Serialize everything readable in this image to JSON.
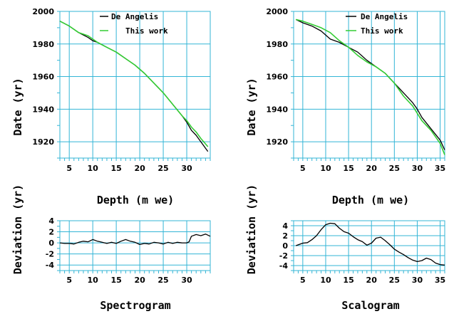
{
  "chart_data": [
    {
      "id": "top-left",
      "type": "line",
      "xlabel": "Depth (m we)",
      "ylabel": "Date (yr)",
      "xlim": [
        3,
        35
      ],
      "ylim": [
        1910,
        2000
      ],
      "xticks": [
        5,
        10,
        15,
        20,
        25,
        30
      ],
      "yticks": [
        1920,
        1940,
        1960,
        1980,
        2000
      ],
      "grid": true,
      "legend_position": "top-right",
      "series": [
        {
          "name": "De Angelis",
          "color": "#000000",
          "x": [
            3,
            5,
            7,
            9,
            10,
            11,
            13,
            15,
            17,
            19,
            21,
            23,
            25,
            27,
            29,
            30,
            31,
            32,
            33,
            34.5
          ],
          "y": [
            1994,
            1991,
            1987,
            1984,
            1982,
            1981,
            1978,
            1975,
            1971,
            1967,
            1962,
            1956,
            1950,
            1943,
            1936,
            1932,
            1927,
            1924,
            1920,
            1914
          ]
        },
        {
          "name": "This work",
          "color": "#33cc33",
          "x": [
            3,
            5,
            7,
            9,
            10,
            11,
            13,
            15,
            17,
            19,
            21,
            23,
            25,
            27,
            29,
            30,
            31,
            32,
            33,
            34.5
          ],
          "y": [
            1994,
            1991,
            1987,
            1985,
            1983,
            1981,
            1978,
            1975,
            1971,
            1967,
            1962,
            1956,
            1950,
            1943,
            1936,
            1933,
            1929,
            1926,
            1922,
            1917
          ]
        }
      ]
    },
    {
      "id": "top-right",
      "type": "line",
      "xlabel": "Depth (m we)",
      "ylabel": "Date (yr)",
      "xlim": [
        3,
        36
      ],
      "ylim": [
        1910,
        2000
      ],
      "xticks": [
        5,
        10,
        15,
        20,
        25,
        30,
        35
      ],
      "yticks": [
        1920,
        1940,
        1960,
        1980,
        2000
      ],
      "grid": true,
      "legend_position": "top-right",
      "series": [
        {
          "name": "De Angelis",
          "color": "#000000",
          "x": [
            3.5,
            5,
            7,
            9,
            11,
            13,
            15,
            17,
            19,
            21,
            23,
            25,
            27,
            29,
            30,
            31,
            33,
            35,
            36
          ],
          "y": [
            1995,
            1993,
            1991,
            1988,
            1983,
            1981,
            1978,
            1975,
            1970,
            1966,
            1962,
            1956,
            1950,
            1944,
            1940,
            1935,
            1928,
            1921,
            1915
          ]
        },
        {
          "name": "This work",
          "color": "#33cc33",
          "x": [
            3.5,
            5,
            7,
            9,
            11,
            13,
            15,
            17,
            19,
            21,
            23,
            25,
            27,
            29,
            31,
            33,
            35,
            36
          ],
          "y": [
            1995,
            1994,
            1992,
            1990,
            1987,
            1982,
            1978,
            1973,
            1969,
            1966,
            1962,
            1956,
            1948,
            1942,
            1933,
            1927,
            1919,
            1912
          ]
        }
      ]
    },
    {
      "id": "bottom-left",
      "type": "line",
      "title": "Spectrogram",
      "ylabel": "Deviation (yr)",
      "xlim": [
        3,
        35
      ],
      "ylim": [
        -5,
        4
      ],
      "xticks": [
        5,
        10,
        15,
        20,
        25,
        30
      ],
      "yticks": [
        -4,
        -2,
        0,
        2,
        4
      ],
      "grid": true,
      "series": [
        {
          "name": "",
          "color": "#000000",
          "x": [
            3,
            4,
            5,
            6,
            7,
            8,
            9,
            10,
            11,
            12,
            13,
            14,
            15,
            16,
            17,
            18,
            19,
            20,
            21,
            22,
            23,
            24,
            25,
            26,
            27,
            28,
            29,
            30,
            30.5,
            31,
            32,
            33,
            34,
            35
          ],
          "y": [
            0.0,
            -0.1,
            -0.1,
            -0.2,
            0.1,
            0.3,
            0.2,
            0.6,
            0.3,
            0.1,
            -0.1,
            0.1,
            -0.1,
            0.3,
            0.6,
            0.3,
            0.1,
            -0.3,
            -0.1,
            -0.2,
            0.1,
            0.0,
            -0.2,
            0.1,
            -0.1,
            0.1,
            0.0,
            0.0,
            0.2,
            1.2,
            1.5,
            1.3,
            1.6,
            1.2
          ]
        }
      ]
    },
    {
      "id": "bottom-right",
      "type": "line",
      "title": "Scalogram",
      "ylabel": "Deviation (yr)",
      "xlim": [
        3,
        36
      ],
      "ylim": [
        -5,
        5
      ],
      "xticks": [
        5,
        10,
        15,
        20,
        25,
        30,
        35
      ],
      "yticks": [
        -4,
        -2,
        0,
        2,
        4
      ],
      "grid": true,
      "series": [
        {
          "name": "",
          "color": "#000000",
          "x": [
            3.5,
            5,
            6,
            7,
            8,
            9,
            10,
            11,
            12,
            13,
            14,
            15,
            16,
            17,
            18,
            19,
            20,
            21,
            22,
            23,
            24,
            25,
            26,
            27,
            28,
            29,
            30,
            31,
            32,
            33,
            34,
            35,
            36
          ],
          "y": [
            0.0,
            0.5,
            0.6,
            1.2,
            2.0,
            3.2,
            4.2,
            4.5,
            4.4,
            3.5,
            2.8,
            2.5,
            1.8,
            1.2,
            0.8,
            0.1,
            0.5,
            1.5,
            1.7,
            1.0,
            0.2,
            -0.7,
            -1.3,
            -1.8,
            -2.4,
            -2.9,
            -3.2,
            -3.0,
            -2.5,
            -2.8,
            -3.5,
            -3.8,
            -3.9
          ]
        }
      ]
    }
  ]
}
